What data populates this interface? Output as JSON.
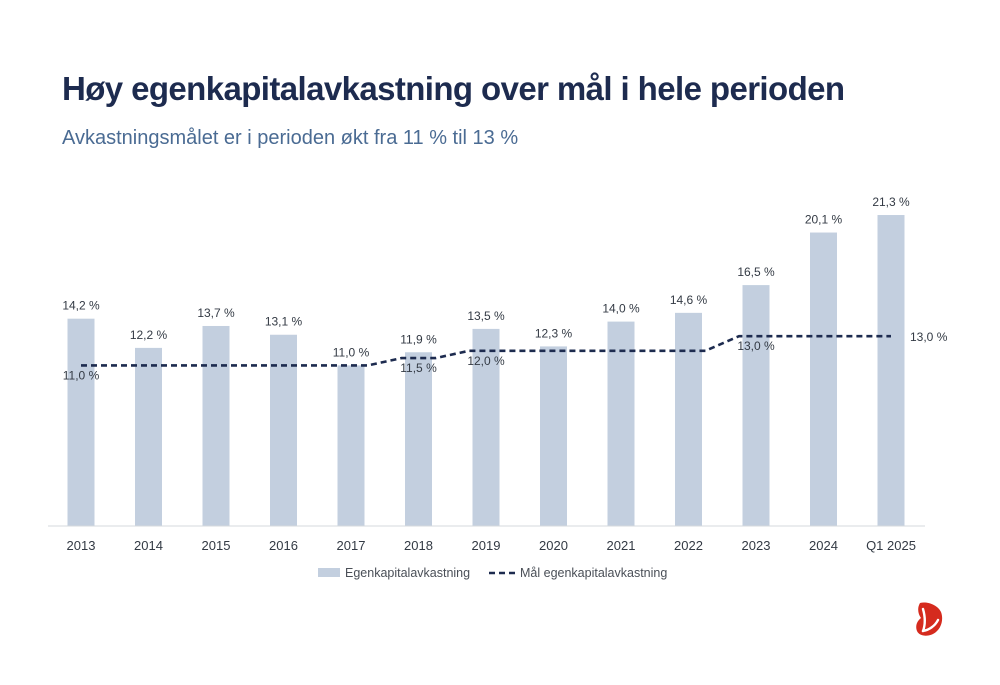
{
  "title": "Høy egenkapitalavkastning over mål i hele perioden",
  "subtitle": "Avkastningsmålet er i perioden økt fra 11 % til 13 %",
  "colors": {
    "bar": "#c3cfdf",
    "line": "#1d2b4f",
    "title": "#1d2b4f",
    "subtitle": "#4a6b93",
    "logo": "#d52b1e"
  },
  "logo_icon": "red-leaf-logo-icon",
  "chart_data": {
    "type": "bar",
    "categories": [
      "2013",
      "2014",
      "2015",
      "2016",
      "2017",
      "2018",
      "2019",
      "2020",
      "2021",
      "2022",
      "2023",
      "2024",
      "Q1 2025"
    ],
    "series": [
      {
        "name": "Egenkapitalavkastning",
        "type": "bar",
        "values": [
          14.2,
          12.2,
          13.7,
          13.1,
          11.0,
          11.9,
          13.5,
          12.3,
          14.0,
          14.6,
          16.5,
          20.1,
          21.3
        ],
        "labels": [
          "14,2 %",
          "12,2 %",
          "13,7 %",
          "13,1 %",
          "11,0 %",
          "11,9 %",
          "13,5 %",
          "12,3 %",
          "14,0 %",
          "14,6 %",
          "16,5 %",
          "20,1 %",
          "21,3 %"
        ]
      },
      {
        "name": "Mål egenkapitalavkastning",
        "type": "line",
        "style": "dashed",
        "values": [
          11.0,
          11.0,
          11.0,
          11.0,
          11.0,
          11.5,
          12.0,
          12.0,
          12.0,
          12.0,
          13.0,
          13.0,
          13.0
        ],
        "labels": [
          "11,0 %",
          null,
          null,
          null,
          null,
          "11,5 %",
          "12,0 %",
          null,
          null,
          null,
          "13,0 %",
          null,
          "13,0 %"
        ]
      }
    ],
    "ylim": [
      0,
      22.5
    ],
    "grid": false,
    "legend": "bottom-center"
  }
}
